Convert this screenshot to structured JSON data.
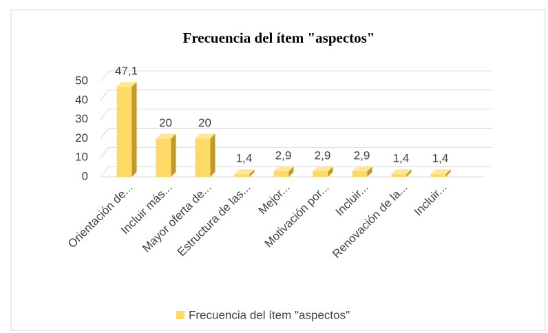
{
  "chart_data": {
    "type": "bar3d",
    "title": "Frecuencia del ítem \"aspectos\"",
    "categories": [
      "Orientación de...",
      "Incluir más...",
      "Mayor oferta de...",
      "Estructura de las...",
      "Mejor...",
      "Motivación por...",
      "Incluir...",
      "Renovación de la...",
      "Incluir..."
    ],
    "series": [
      {
        "name": "Frecuencia del ítem \"aspectos\"",
        "color": "#ffd966",
        "values": [
          47.1,
          20,
          20,
          1.4,
          2.9,
          2.9,
          2.9,
          1.4,
          1.4
        ],
        "value_labels": [
          "47,1",
          "20",
          "20",
          "1,4",
          "2,9",
          "2,9",
          "2,9",
          "1,4",
          "1,4"
        ]
      }
    ],
    "ylim": [
      0,
      50
    ],
    "yticks": [
      0,
      10,
      20,
      30,
      40,
      50
    ],
    "grid": true,
    "legend": "bottom"
  }
}
